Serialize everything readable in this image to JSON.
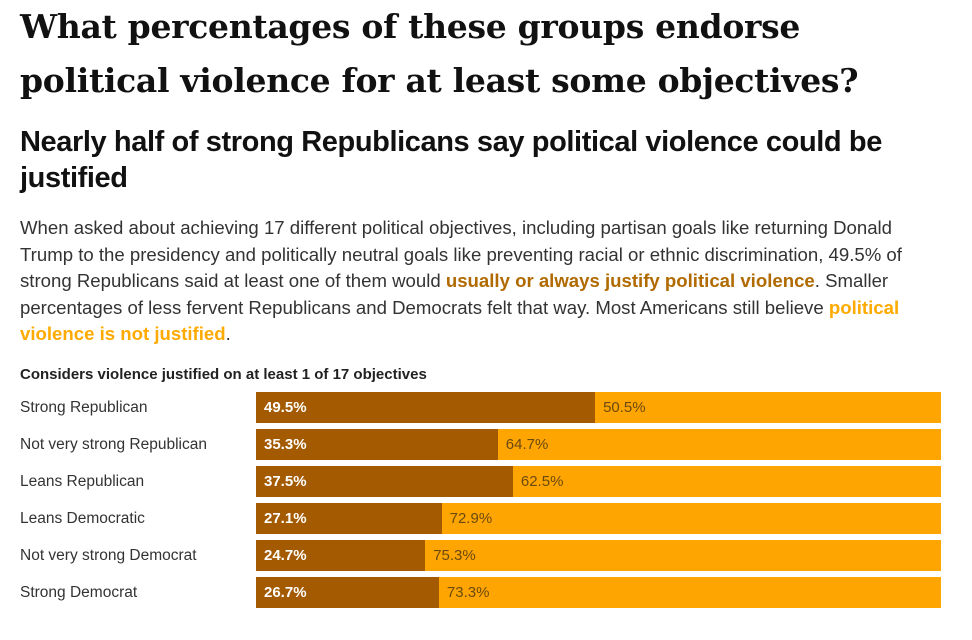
{
  "header": {
    "title": "What percentages of these groups endorse political violence for at least some objectives?",
    "subtitle": "Nearly half of strong Republicans say political violence could be justified",
    "description": {
      "part1": "When asked about achieving 17 different political objectives, including partisan goals like returning Donald Trump to the presidency and politically neutral goals like preventing racial or ethnic discrimination, 49.5% of strong Republicans said at least one of them would ",
      "highlight1": "usually or always justify political violence",
      "part2": ". Smaller percentages of less fervent Republicans and Democrats felt that way. Most Americans still believe ",
      "highlight2": "political violence is not justified",
      "part3": "."
    }
  },
  "colors": {
    "justified": "#A35A00",
    "not_justified": "#FFA502",
    "highlight_dark_text": "#B06A00",
    "highlight_light_text": "#FFAA00"
  },
  "chart_data": {
    "type": "bar",
    "orientation": "horizontal",
    "stacked": true,
    "title": "Considers violence justified on at least 1 of 17 objectives",
    "xlabel": "",
    "ylabel": "",
    "xlim": [
      0,
      100
    ],
    "grid": false,
    "categories": [
      "Strong Republican",
      "Not very strong Republican",
      "Leans Republican",
      "Leans Democratic",
      "Not very strong Democrat",
      "Strong Democrat"
    ],
    "series": [
      {
        "name": "Usually or always justify political violence",
        "color": "#A35A00",
        "values": [
          49.5,
          35.3,
          37.5,
          27.1,
          24.7,
          26.7
        ]
      },
      {
        "name": "Political violence is not justified",
        "color": "#FFA502",
        "values": [
          50.5,
          64.7,
          62.5,
          72.9,
          75.3,
          73.3
        ]
      }
    ],
    "value_labels": [
      [
        "49.5%",
        "50.5%"
      ],
      [
        "35.3%",
        "64.7%"
      ],
      [
        "37.5%",
        "62.5%"
      ],
      [
        "27.1%",
        "72.9%"
      ],
      [
        "24.7%",
        "75.3%"
      ],
      [
        "26.7%",
        "73.3%"
      ]
    ]
  }
}
